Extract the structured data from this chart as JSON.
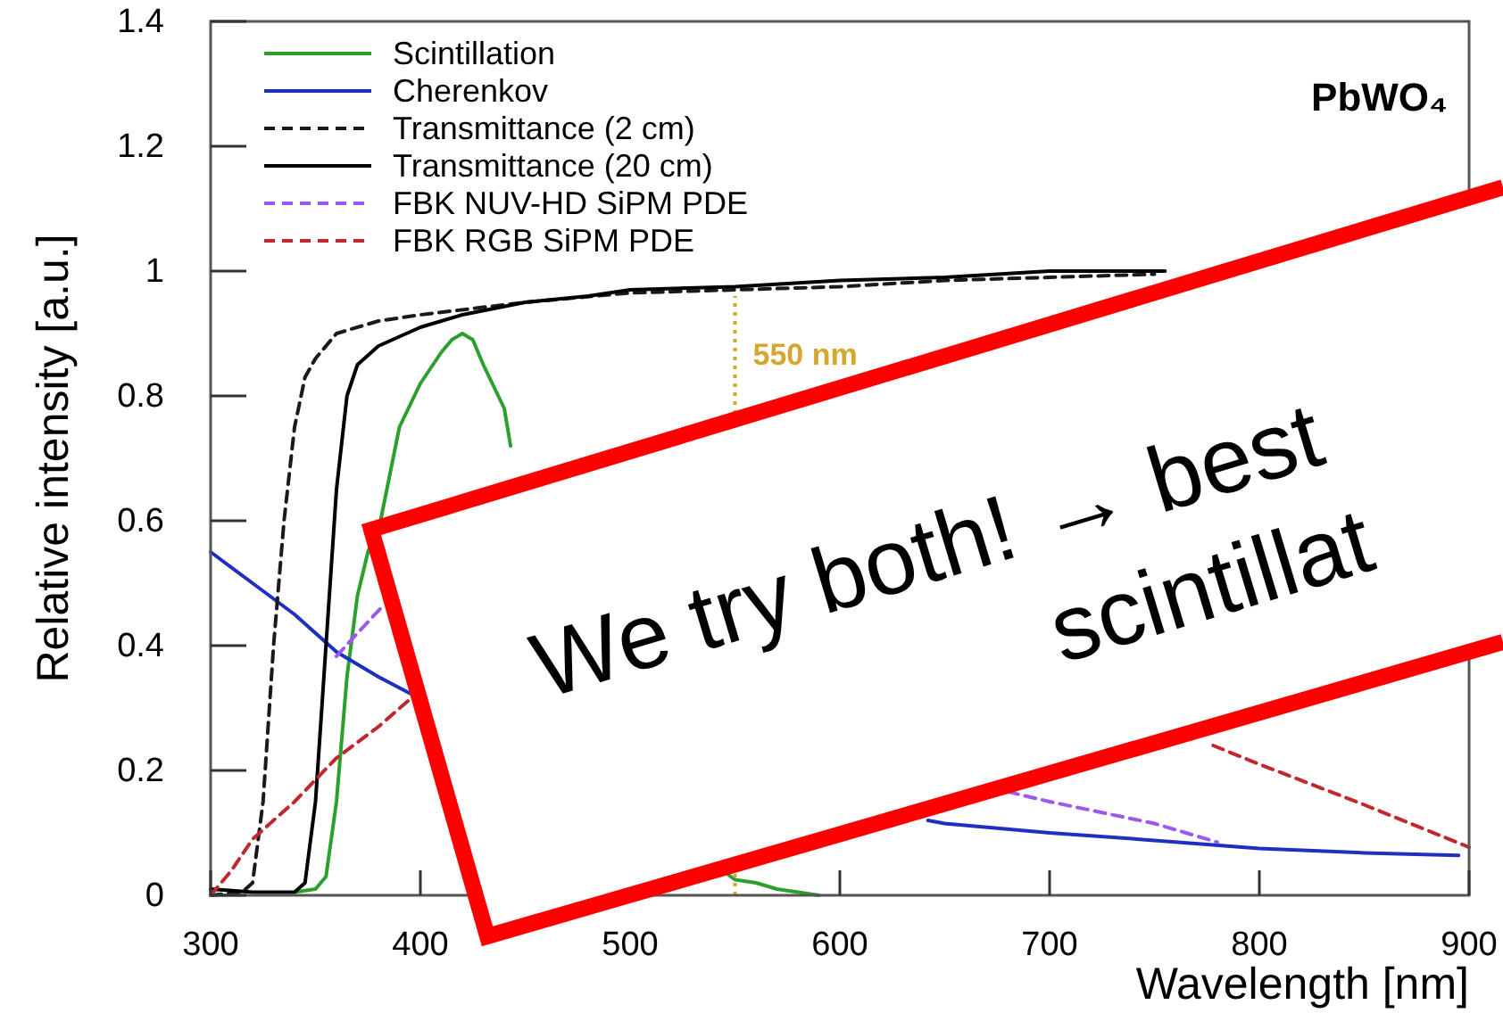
{
  "chart_data": {
    "type": "line",
    "xlabel": "Wavelength [nm]",
    "ylabel": "Relative intensity [a.u.]",
    "xlim": [
      300,
      900
    ],
    "ylim": [
      0,
      1.4
    ],
    "xticks": [
      300,
      400,
      500,
      600,
      700,
      800,
      900
    ],
    "yticks": [
      0,
      0.2,
      0.4,
      0.6,
      0.8,
      1,
      1.2,
      1.4
    ],
    "grid": false,
    "legend": "top left",
    "marker": "none",
    "annotations": [
      "PbWO₄",
      "We try both! → best",
      "scintillat"
    ],
    "ref_lines": [
      {
        "axis": "x",
        "value": 550,
        "label": "550 nm",
        "color": "#d4a830",
        "line_style": "dotted"
      }
    ],
    "series": [
      {
        "name": "Scintillation",
        "color": "#2ca02c",
        "line_style": "solid",
        "x": [
          340,
          350,
          355,
          360,
          365,
          370,
          375,
          381,
          390,
          400,
          410,
          415,
          420,
          425,
          430,
          440,
          443,
          455,
          535,
          546,
          550,
          560,
          570,
          580,
          590
        ],
        "values": [
          0.005,
          0.01,
          0.03,
          0.15,
          0.35,
          0.48,
          0.55,
          0.6,
          0.75,
          0.82,
          0.87,
          0.89,
          0.9,
          0.89,
          0.85,
          0.78,
          0.72,
          null,
          null,
          0.035,
          0.025,
          0.02,
          0.01,
          0.005,
          0.0
        ]
      },
      {
        "name": "Cherenkov",
        "color": "#1f2fbf",
        "line_style": "solid",
        "x": [
          300,
          320,
          340,
          360,
          380,
          397,
          410,
          615,
          642,
          650,
          700,
          750,
          800,
          850,
          895
        ],
        "values": [
          0.55,
          0.5,
          0.45,
          0.39,
          0.35,
          0.32,
          null,
          null,
          0.12,
          0.115,
          0.1,
          0.088,
          0.075,
          0.068,
          0.064
        ]
      },
      {
        "name": "Transmittance (2 cm)",
        "color": "#1a1a1a",
        "line_style": "dashed",
        "x": [
          300,
          315,
          320,
          325,
          330,
          335,
          340,
          345,
          350,
          360,
          380,
          400,
          450,
          500,
          550,
          600,
          650,
          700,
          750
        ],
        "values": [
          0.0,
          0.005,
          0.02,
          0.15,
          0.4,
          0.6,
          0.75,
          0.83,
          0.86,
          0.9,
          0.92,
          0.93,
          0.95,
          0.965,
          0.97,
          0.975,
          0.985,
          0.99,
          0.995
        ]
      },
      {
        "name": "Transmittance (20 cm)",
        "color": "#000000",
        "line_style": "solid",
        "x": [
          300,
          320,
          340,
          345,
          350,
          355,
          360,
          365,
          370,
          380,
          400,
          420,
          450,
          480,
          500,
          550,
          600,
          650,
          700,
          755
        ],
        "values": [
          0.01,
          0.005,
          0.005,
          0.02,
          0.15,
          0.4,
          0.65,
          0.8,
          0.85,
          0.88,
          0.91,
          0.93,
          0.95,
          0.96,
          0.97,
          0.975,
          0.985,
          0.99,
          1.0,
          1.0
        ]
      },
      {
        "name": "FBK NUV-HD SiPM PDE",
        "color": "#9b59f0",
        "line_style": "dashed",
        "x": [
          360,
          370,
          382,
          400,
          670,
          680,
          700,
          750,
          780
        ],
        "values": [
          0.383,
          0.42,
          0.463,
          null,
          null,
          0.166,
          0.15,
          0.115,
          0.085
        ]
      },
      {
        "name": "FBK RGB SiPM PDE",
        "color": "#c0282e",
        "line_style": "dashed",
        "x": [
          300,
          310,
          320,
          340,
          360,
          380,
          397,
          410,
          750,
          778,
          800,
          850,
          900
        ],
        "values": [
          0.0,
          0.04,
          0.09,
          0.15,
          0.22,
          0.27,
          0.32,
          null,
          null,
          0.24,
          0.21,
          0.145,
          0.077
        ]
      }
    ]
  }
}
